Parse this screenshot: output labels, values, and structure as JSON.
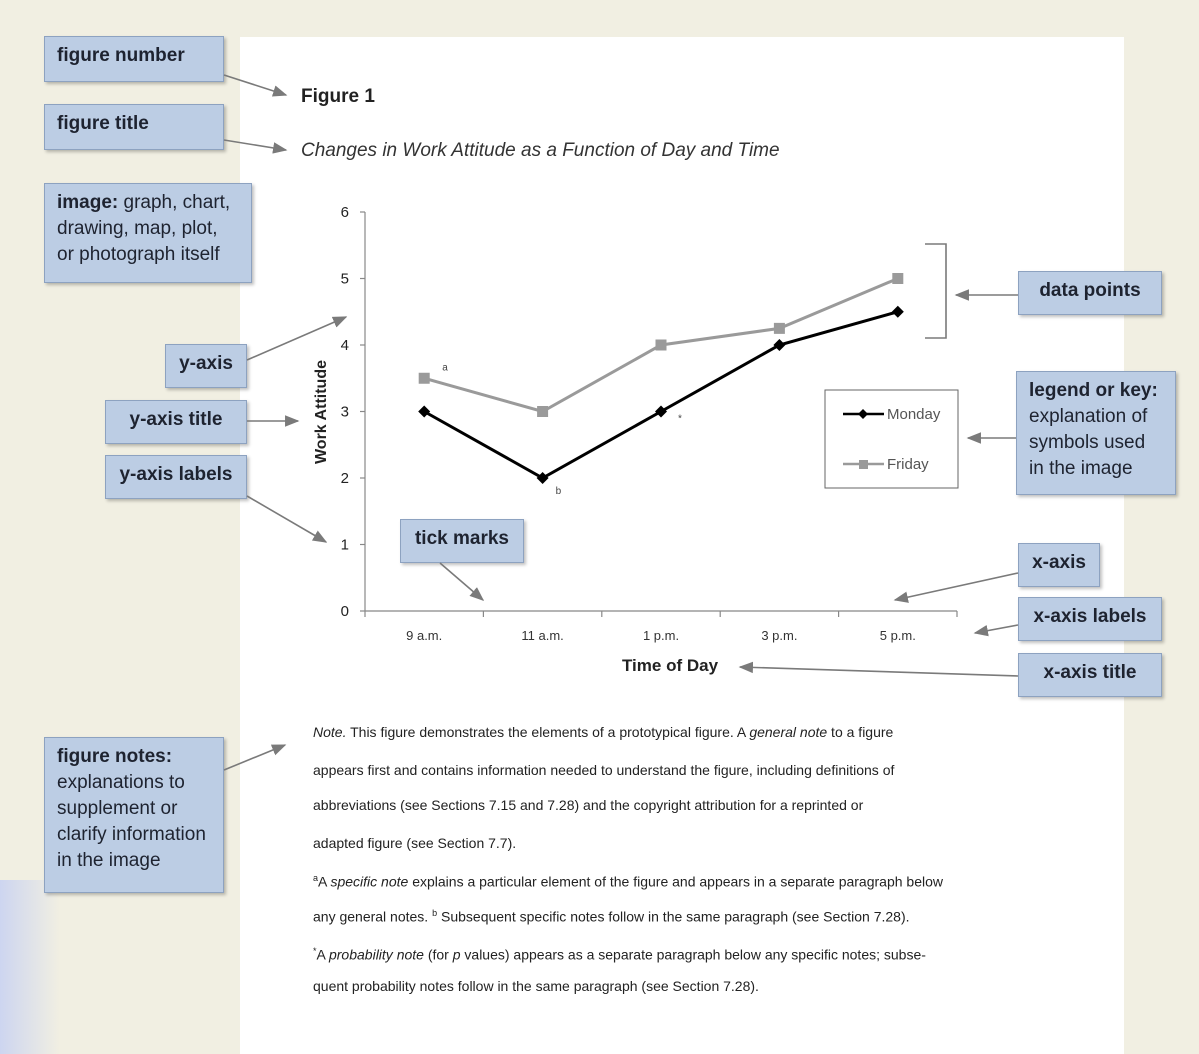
{
  "figure": {
    "number": "Figure 1",
    "title": "Changes in Work Attitude as a Function of Day and Time"
  },
  "callouts": {
    "figure_number": "figure number",
    "figure_title": "figure title",
    "image_bold": "image:",
    "image_rest": " graph, chart,",
    "image_line2": "drawing, map, plot,",
    "image_line3": "or photograph itself",
    "y_axis": "y-axis",
    "y_axis_title": "y-axis title",
    "y_axis_labels": "y-axis labels",
    "tick_marks": "tick marks",
    "data_points": "data points",
    "legend_bold": "legend or key:",
    "legend_line2": "explanation of",
    "legend_line3": "symbols used",
    "legend_line4": "in the image",
    "x_axis": "x-axis",
    "x_axis_labels": "x-axis labels",
    "x_axis_title": "x-axis title",
    "notes_bold": "figure notes:",
    "notes_line2": "explanations to",
    "notes_line3": "supplement or",
    "notes_line4": "clarify information",
    "notes_line5": "in the image"
  },
  "chart_data": {
    "type": "line",
    "categories": [
      "9 a.m.",
      "11 a.m.",
      "1 p.m.",
      "3 p.m.",
      "5 p.m."
    ],
    "series": [
      {
        "name": "Monday",
        "values": [
          3,
          2,
          3,
          4,
          4.5
        ],
        "color": "#000000",
        "marker": "diamond"
      },
      {
        "name": "Friday",
        "values": [
          3.5,
          3,
          4,
          4.25,
          5
        ],
        "color": "#9a9a9a",
        "marker": "square"
      }
    ],
    "xlabel": "Time of Day",
    "ylabel": "Work Attitude",
    "ylim": [
      0,
      6
    ],
    "yticks": [
      "0",
      "1",
      "2",
      "3",
      "4",
      "5",
      "6"
    ],
    "annotations": [
      {
        "text": "a",
        "series": "Friday",
        "index": 0
      },
      {
        "text": "b",
        "series": "Monday",
        "index": 1
      },
      {
        "text": "*",
        "series": "Monday",
        "index": 2
      }
    ],
    "legend_position": "right",
    "grid": false
  },
  "notes": {
    "p1_note": "Note.",
    "p1_a": " This figure demonstrates the elements of a prototypical figure. A ",
    "p1_general": "general note",
    "p1_b": " to a figure",
    "p1_line2": "appears first and contains information needed to understand the figure, including definitions of",
    "p1_line3": "abbreviations (see Sections 7.15 and 7.28) and the copyright attribution for a reprinted or",
    "p1_line4": "adapted figure (see Section 7.7).",
    "p2_sup_a": "a",
    "p2_a": "A ",
    "p2_specific": "specific note",
    "p2_b": " explains a particular element of the figure and appears in a separate paragraph below",
    "p2_line2a": "any general notes. ",
    "p2_sup_b": "b",
    "p2_line2b": " Subsequent specific notes follow in the same paragraph (see Section 7.28).",
    "p3_sup": "*",
    "p3_a": "A ",
    "p3_prob": "probability note",
    "p3_b": " (for ",
    "p3_p": "p",
    "p3_c": " values) appears as a separate paragraph below any specific notes; subse-",
    "p3_line2": "quent probability notes follow in the same paragraph (see Section 7.28)."
  }
}
